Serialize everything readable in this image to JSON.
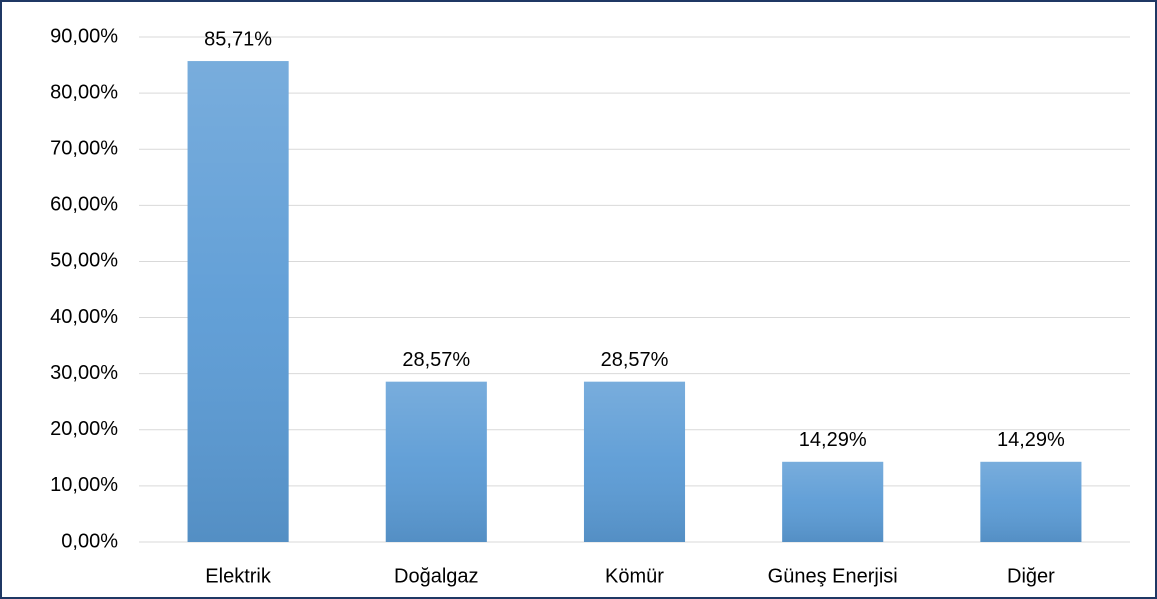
{
  "chart_data": {
    "type": "bar",
    "categories": [
      "Elektrik",
      "Doğalgaz",
      "Kömür",
      "Güneş Enerjisi",
      "Diğer"
    ],
    "values": [
      85.71,
      28.57,
      28.57,
      14.29,
      14.29
    ],
    "value_labels": [
      "85,71%",
      "28,57%",
      "28,57%",
      "14,29%",
      "14,29%"
    ],
    "color": "#5b9bd5",
    "ylim": [
      0,
      90
    ],
    "yticks": [
      {
        "value": 0,
        "label": "0,00%"
      },
      {
        "value": 10,
        "label": "10,00%"
      },
      {
        "value": 20,
        "label": "20,00%"
      },
      {
        "value": 30,
        "label": "30,00%"
      },
      {
        "value": 40,
        "label": "40,00%"
      },
      {
        "value": 50,
        "label": "50,00%"
      },
      {
        "value": 60,
        "label": "60,00%"
      },
      {
        "value": 70,
        "label": "70,00%"
      },
      {
        "value": 80,
        "label": "80,00%"
      },
      {
        "value": 90,
        "label": "90,00%"
      }
    ],
    "grid": true
  }
}
